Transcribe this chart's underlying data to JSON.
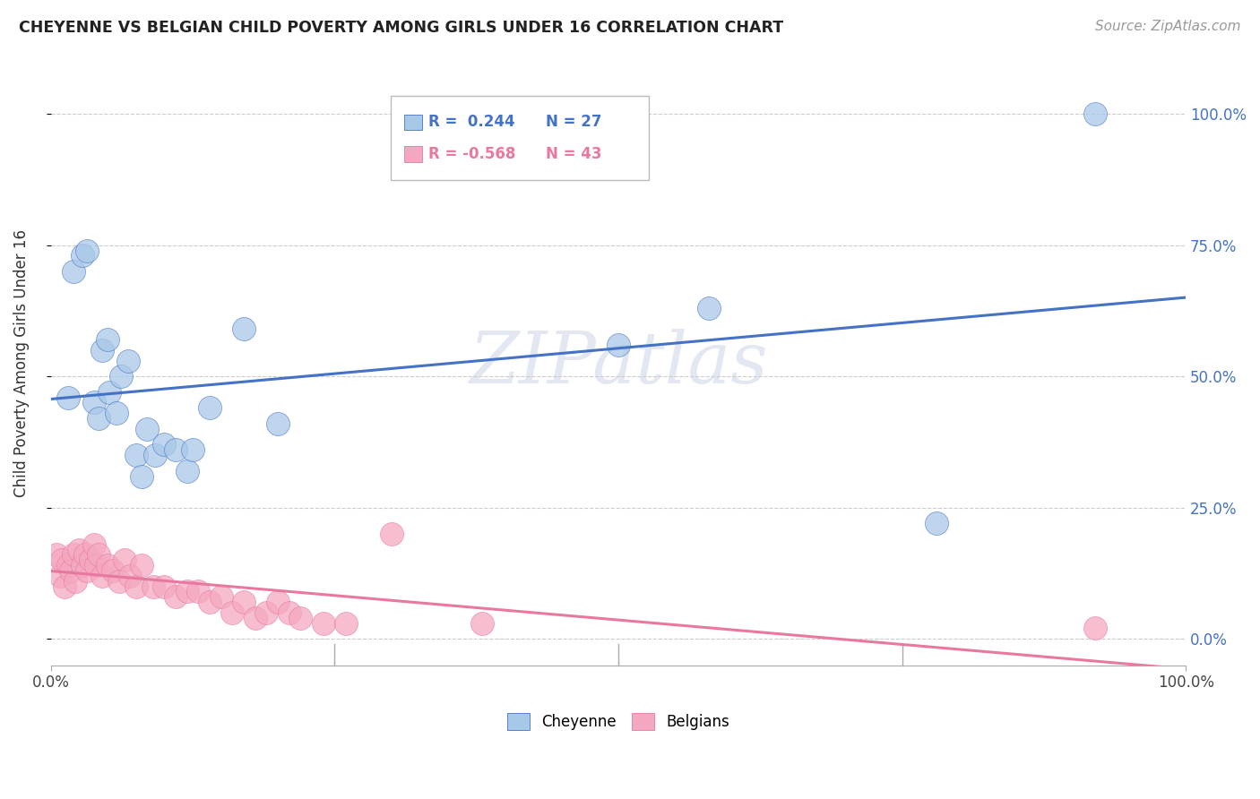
{
  "title": "CHEYENNE VS BELGIAN CHILD POVERTY AMONG GIRLS UNDER 16 CORRELATION CHART",
  "source": "Source: ZipAtlas.com",
  "ylabel": "Child Poverty Among Girls Under 16",
  "legend_r1": "R =  0.244",
  "legend_n1": "N = 27",
  "legend_r2": "R = -0.568",
  "legend_n2": "N = 43",
  "watermark": "ZIPatlas",
  "cheyenne_color": "#a8c8e8",
  "belgian_color": "#f4a8c0",
  "cheyenne_line_color": "#4472c4",
  "belgian_line_color": "#e878a0",
  "cheyenne_x": [
    1.5,
    2.0,
    2.8,
    3.2,
    3.8,
    4.2,
    4.5,
    5.0,
    5.2,
    5.8,
    6.2,
    6.8,
    7.5,
    8.0,
    8.5,
    9.2,
    10.0,
    11.0,
    12.0,
    12.5,
    14.0,
    17.0,
    20.0,
    50.0,
    58.0,
    78.0,
    92.0
  ],
  "cheyenne_y": [
    46.0,
    70.0,
    73.0,
    74.0,
    45.0,
    42.0,
    55.0,
    57.0,
    47.0,
    43.0,
    50.0,
    53.0,
    35.0,
    31.0,
    40.0,
    35.0,
    37.0,
    36.0,
    32.0,
    36.0,
    44.0,
    59.0,
    41.0,
    56.0,
    63.0,
    22.0,
    100.0
  ],
  "belgian_x": [
    0.5,
    0.8,
    1.0,
    1.2,
    1.5,
    1.8,
    2.0,
    2.2,
    2.5,
    2.8,
    3.0,
    3.2,
    3.5,
    3.8,
    4.0,
    4.2,
    4.5,
    5.0,
    5.5,
    6.0,
    6.5,
    7.0,
    7.5,
    8.0,
    9.0,
    10.0,
    11.0,
    12.0,
    13.0,
    14.0,
    15.0,
    16.0,
    17.0,
    18.0,
    19.0,
    20.0,
    21.0,
    22.0,
    24.0,
    26.0,
    30.0,
    38.0,
    92.0
  ],
  "belgian_y": [
    16.0,
    12.0,
    15.0,
    10.0,
    14.0,
    13.0,
    16.0,
    11.0,
    17.0,
    14.0,
    16.0,
    13.0,
    15.0,
    18.0,
    14.0,
    16.0,
    12.0,
    14.0,
    13.0,
    11.0,
    15.0,
    12.0,
    10.0,
    14.0,
    10.0,
    10.0,
    8.0,
    9.0,
    9.0,
    7.0,
    8.0,
    5.0,
    7.0,
    4.0,
    5.0,
    7.0,
    5.0,
    4.0,
    3.0,
    3.0,
    20.0,
    3.0,
    2.0
  ],
  "xlim": [
    0,
    100
  ],
  "ylim": [
    -5,
    110
  ],
  "yticks": [
    0,
    25,
    50,
    75,
    100
  ],
  "ytick_labels": [
    "0.0%",
    "25.0%",
    "50.0%",
    "75.0%",
    "100.0%"
  ],
  "xtick_left": "0.0%",
  "xtick_right": "100.0%"
}
